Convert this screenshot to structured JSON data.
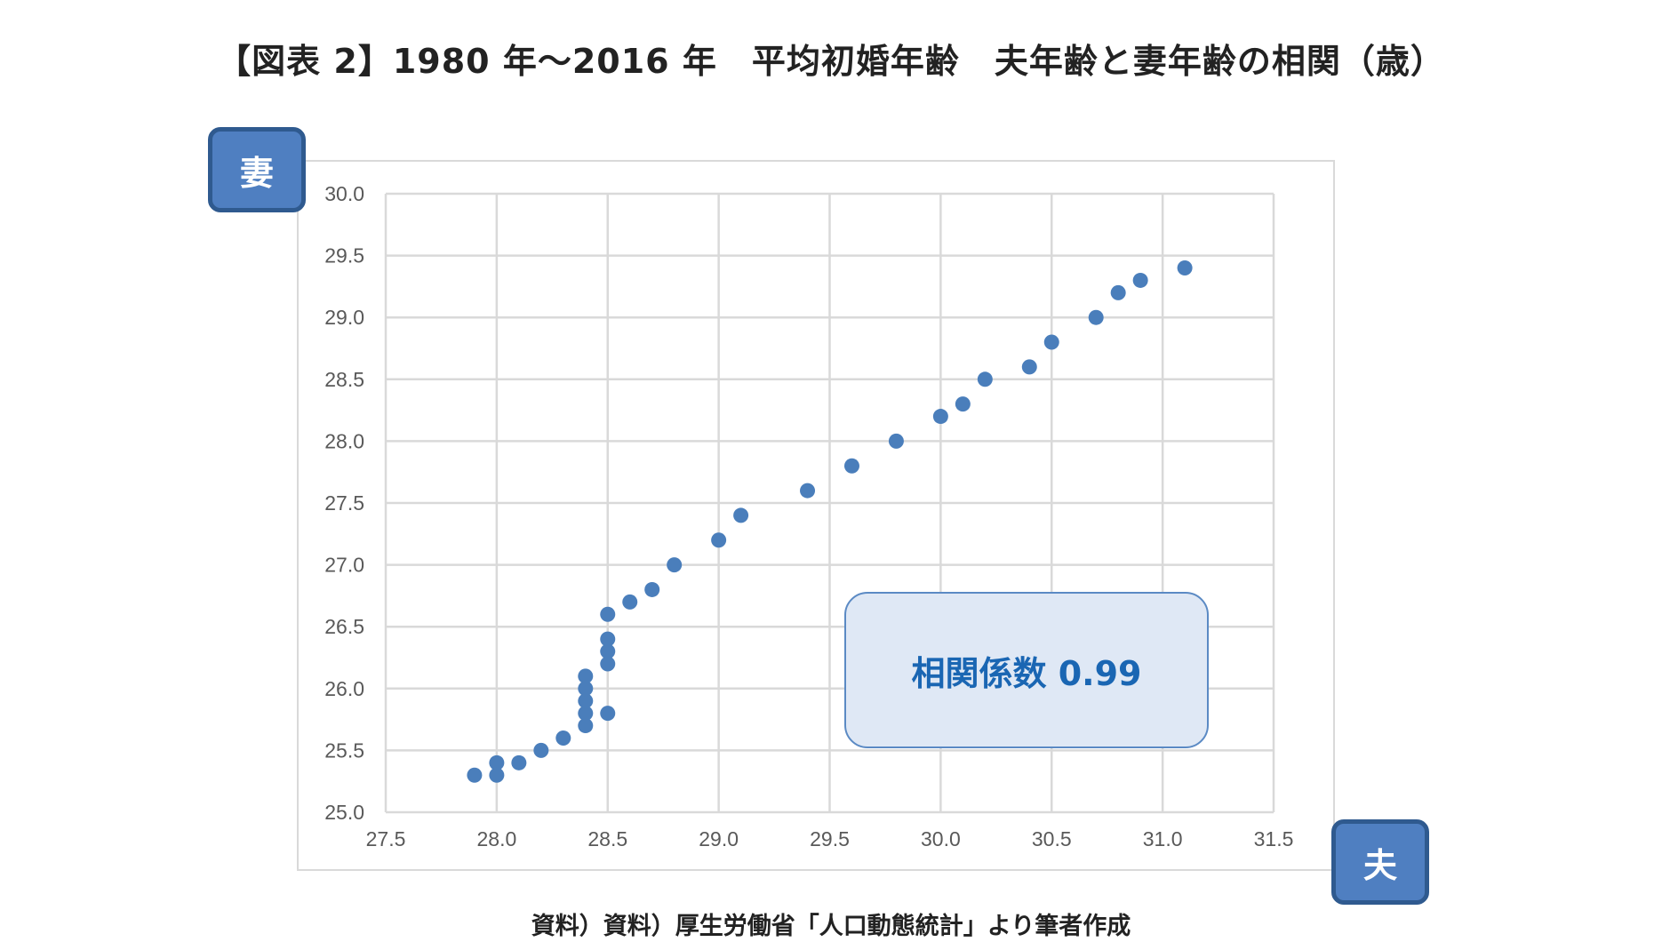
{
  "title": "【図表 2】1980 年～2016 年　平均初婚年齢　夫年齢と妻年齢の相関（歳）",
  "y_axis_tag": "妻",
  "x_axis_tag": "夫",
  "correlation_label": "相関係数 0.99",
  "source": "資料）資料）厚生労働省「人口動態統計」より筆者作成",
  "colors": {
    "marker": "#4a7ebb",
    "grid": "#d9d9d9",
    "tag_fill": "#4f7fc1",
    "tag_border": "#2f5a8f",
    "corr_text": "#1a66b3",
    "corr_fill": "#dfe8f5"
  },
  "chart_data": {
    "type": "scatter",
    "title": "",
    "xlabel": "夫",
    "ylabel": "妻",
    "xlim": [
      27.5,
      31.5
    ],
    "ylim": [
      25.0,
      30.0
    ],
    "x_ticks": [
      "27.5",
      "28.0",
      "28.5",
      "29.0",
      "29.5",
      "30.0",
      "30.5",
      "31.0",
      "31.5"
    ],
    "y_ticks": [
      "30.0",
      "29.5",
      "29.0",
      "28.5",
      "28.0",
      "27.5",
      "27.0",
      "26.5",
      "26.0",
      "25.5",
      "25.0"
    ],
    "grid": true,
    "annotation": "相関係数 0.99",
    "points": [
      [
        27.9,
        25.3
      ],
      [
        28.0,
        25.3
      ],
      [
        28.0,
        25.4
      ],
      [
        28.1,
        25.4
      ],
      [
        28.2,
        25.5
      ],
      [
        28.3,
        25.6
      ],
      [
        28.4,
        25.7
      ],
      [
        28.4,
        25.8
      ],
      [
        28.4,
        25.9
      ],
      [
        28.4,
        26.0
      ],
      [
        28.4,
        26.1
      ],
      [
        28.5,
        25.8
      ],
      [
        28.5,
        26.2
      ],
      [
        28.5,
        26.3
      ],
      [
        28.5,
        26.4
      ],
      [
        28.5,
        26.6
      ],
      [
        28.6,
        26.7
      ],
      [
        28.7,
        26.8
      ],
      [
        28.8,
        27.0
      ],
      [
        29.0,
        27.2
      ],
      [
        29.1,
        27.4
      ],
      [
        29.4,
        27.6
      ],
      [
        29.6,
        27.8
      ],
      [
        29.8,
        28.0
      ],
      [
        30.0,
        28.2
      ],
      [
        30.1,
        28.3
      ],
      [
        30.2,
        28.5
      ],
      [
        30.4,
        28.6
      ],
      [
        30.5,
        28.8
      ],
      [
        30.7,
        29.0
      ],
      [
        30.8,
        29.2
      ],
      [
        30.9,
        29.3
      ],
      [
        31.1,
        29.4
      ]
    ]
  }
}
